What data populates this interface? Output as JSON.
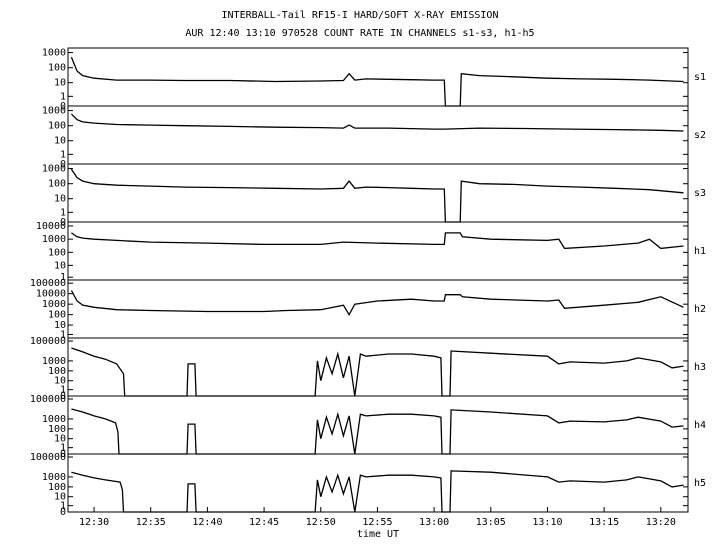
{
  "chart_data": [
    {
      "type": "line",
      "title": "INTERBALL-Tail RF15-I HARD/SOFT X-RAY EMISSION",
      "subtitle": "AUR 12:40 13:10 970528  COUNT RATE IN CHANNELS s1-s3, h1-h5",
      "name": "s1",
      "log_scale": true,
      "color": "#000000",
      "x": [
        748,
        748.5,
        749,
        750,
        752,
        755,
        758,
        762,
        766,
        770,
        772,
        772.5,
        773,
        774,
        776,
        778,
        780,
        780.9,
        781,
        782.3,
        782.4,
        784,
        787,
        790,
        793,
        796,
        799,
        802
      ],
      "values": [
        500,
        60,
        30,
        20,
        15,
        15,
        14,
        14,
        12,
        13,
        14,
        40,
        15,
        18,
        17,
        16,
        15,
        15,
        0,
        0,
        40,
        30,
        25,
        20,
        18,
        17,
        15,
        12
      ],
      "xlim": [
        747.7,
        802.4
      ],
      "ylim": [
        0,
        2000
      ],
      "yticks": [
        0,
        1,
        10,
        100,
        1000
      ]
    },
    {
      "type": "line",
      "name": "s2",
      "log_scale": true,
      "color": "#000000",
      "x": [
        748,
        748.5,
        749,
        750,
        752,
        755,
        758,
        762,
        766,
        770,
        772,
        772.5,
        773,
        776,
        780,
        780.9,
        781,
        784,
        788,
        792,
        796,
        800,
        802
      ],
      "values": [
        600,
        250,
        180,
        150,
        120,
        110,
        100,
        90,
        80,
        75,
        70,
        110,
        70,
        70,
        60,
        60,
        60,
        70,
        65,
        60,
        55,
        50,
        45
      ],
      "xlim": [
        747.7,
        802.4
      ],
      "ylim": [
        0,
        2000
      ],
      "yticks": [
        0,
        1,
        10,
        100,
        1000
      ]
    },
    {
      "type": "line",
      "name": "s3",
      "log_scale": true,
      "color": "#000000",
      "x": [
        748,
        748.5,
        749,
        750,
        752,
        755,
        758,
        762,
        766,
        770,
        772,
        772.5,
        773,
        774,
        776,
        778,
        780,
        780.9,
        781,
        782.3,
        782.4,
        784,
        787,
        790,
        793,
        796,
        799,
        802
      ],
      "values": [
        900,
        250,
        150,
        100,
        80,
        70,
        60,
        55,
        50,
        45,
        50,
        150,
        50,
        60,
        55,
        50,
        45,
        45,
        0,
        0,
        150,
        100,
        90,
        70,
        60,
        50,
        40,
        25
      ],
      "xlim": [
        747.7,
        802.4
      ],
      "ylim": [
        0,
        2000
      ],
      "yticks": [
        0,
        1,
        10,
        100,
        1000
      ]
    },
    {
      "type": "line",
      "name": "h1",
      "log_scale": true,
      "color": "#000000",
      "x": [
        748,
        748.5,
        749,
        750,
        752,
        755,
        760,
        765,
        770,
        772,
        775,
        780,
        780.9,
        781,
        782.3,
        782.5,
        785,
        790,
        791,
        791.5,
        795,
        798,
        799,
        800,
        802
      ],
      "values": [
        3000,
        1500,
        1200,
        1000,
        800,
        600,
        500,
        400,
        400,
        600,
        500,
        400,
        400,
        3000,
        3000,
        1500,
        1000,
        800,
        1000,
        200,
        300,
        500,
        1000,
        200,
        300
      ],
      "xlim": [
        747.7,
        802.4
      ],
      "ylim": [
        0.5,
        20000
      ],
      "yticks": [
        1,
        10,
        100,
        1000,
        10000
      ]
    },
    {
      "type": "line",
      "name": "h2",
      "log_scale": true,
      "color": "#000000",
      "x": [
        748,
        748.5,
        749,
        750,
        752,
        755,
        760,
        765,
        767,
        770,
        772,
        772.5,
        773,
        775,
        778,
        780,
        780.9,
        781,
        782.3,
        782.5,
        785,
        790,
        791,
        791.5,
        795,
        798,
        800,
        802
      ],
      "values": [
        20000,
        2000,
        800,
        500,
        300,
        250,
        200,
        200,
        250,
        300,
        800,
        100,
        1000,
        2000,
        3000,
        2000,
        2000,
        8000,
        8000,
        5000,
        3000,
        2000,
        2500,
        400,
        800,
        1500,
        5000,
        500
      ],
      "xlim": [
        747.7,
        802.4
      ],
      "ylim": [
        0.3,
        200000
      ],
      "yticks": [
        1,
        10,
        100,
        1000,
        10000,
        100000
      ]
    },
    {
      "type": "line",
      "name": "h3",
      "log_scale": true,
      "color": "#000000",
      "x": [
        748,
        749,
        750,
        751,
        752,
        752.6,
        752.7,
        758.2,
        758.3,
        758.9,
        759,
        769.5,
        769.7,
        770,
        770.5,
        771,
        771.5,
        772,
        772.5,
        773,
        773.5,
        774,
        776,
        778,
        780,
        780.6,
        780.7,
        781.4,
        781.5,
        785,
        790,
        791,
        792,
        795,
        797,
        798,
        800,
        801,
        802
      ],
      "values": [
        20000,
        8000,
        3000,
        1500,
        500,
        50,
        0,
        0,
        500,
        500,
        0,
        0,
        1000,
        10,
        2000,
        50,
        5000,
        20,
        3000,
        0,
        5000,
        3000,
        5000,
        5000,
        3000,
        2000,
        0,
        0,
        10000,
        6000,
        3000,
        500,
        800,
        600,
        1000,
        2000,
        800,
        200,
        300
      ],
      "xlim": [
        747.7,
        802.4
      ],
      "ylim": [
        0,
        200000
      ],
      "yticks": [
        0,
        1,
        10,
        100,
        1000,
        100000
      ]
    },
    {
      "type": "line",
      "name": "h4",
      "log_scale": true,
      "color": "#000000",
      "x": [
        748,
        749,
        750,
        751,
        751.9,
        752.1,
        752.2,
        758.2,
        758.3,
        758.9,
        759,
        769.5,
        769.7,
        770,
        770.5,
        771,
        771.5,
        772,
        772.5,
        773,
        773.5,
        774,
        776,
        778,
        780,
        780.6,
        780.7,
        781.4,
        781.5,
        785,
        790,
        791,
        792,
        795,
        797,
        798,
        800,
        801,
        802
      ],
      "values": [
        10000,
        5000,
        2000,
        1000,
        400,
        50,
        0,
        0,
        300,
        300,
        0,
        0,
        800,
        10,
        1500,
        30,
        3000,
        20,
        2000,
        0,
        3000,
        2000,
        3000,
        3000,
        2000,
        1500,
        0,
        0,
        8000,
        5000,
        2000,
        400,
        600,
        500,
        800,
        1500,
        600,
        150,
        200
      ],
      "xlim": [
        747.7,
        802.4
      ],
      "ylim": [
        0,
        200000
      ],
      "yticks": [
        0,
        1,
        10,
        100,
        1000,
        100000
      ]
    },
    {
      "type": "line",
      "name": "h5",
      "log_scale": true,
      "color": "#000000",
      "xlabel": "time UT",
      "x": [
        748,
        749,
        750,
        751,
        752.3,
        752.5,
        752.6,
        758.2,
        758.3,
        758.9,
        759,
        769.5,
        769.7,
        770,
        770.5,
        771,
        771.5,
        772,
        772.5,
        773,
        773.5,
        774,
        776,
        778,
        780,
        780.6,
        780.7,
        781.4,
        781.5,
        785,
        790,
        791,
        792,
        795,
        797,
        798,
        800,
        801,
        802
      ],
      "values": [
        3000,
        1500,
        800,
        500,
        300,
        50,
        0,
        0,
        200,
        200,
        0,
        0,
        500,
        10,
        1000,
        30,
        1500,
        20,
        1000,
        0,
        1500,
        1000,
        1500,
        1500,
        1000,
        800,
        0,
        0,
        4000,
        3000,
        1000,
        300,
        400,
        300,
        500,
        1000,
        400,
        100,
        150
      ],
      "xlim": [
        747.7,
        802.4
      ],
      "ylim": [
        0,
        200000
      ],
      "yticks": [
        0,
        1,
        10,
        100,
        1000,
        100000
      ],
      "xticks": [
        {
          "value": 750,
          "label": "12:30"
        },
        {
          "value": 755,
          "label": "12:35"
        },
        {
          "value": 760,
          "label": "12:40"
        },
        {
          "value": 765,
          "label": "12:45"
        },
        {
          "value": 770,
          "label": "12:50"
        },
        {
          "value": 775,
          "label": "12:55"
        },
        {
          "value": 780,
          "label": "13:00"
        },
        {
          "value": 785,
          "label": "13:05"
        },
        {
          "value": 790,
          "label": "13:10"
        },
        {
          "value": 795,
          "label": "13:15"
        },
        {
          "value": 800,
          "label": "13:20"
        }
      ]
    }
  ]
}
